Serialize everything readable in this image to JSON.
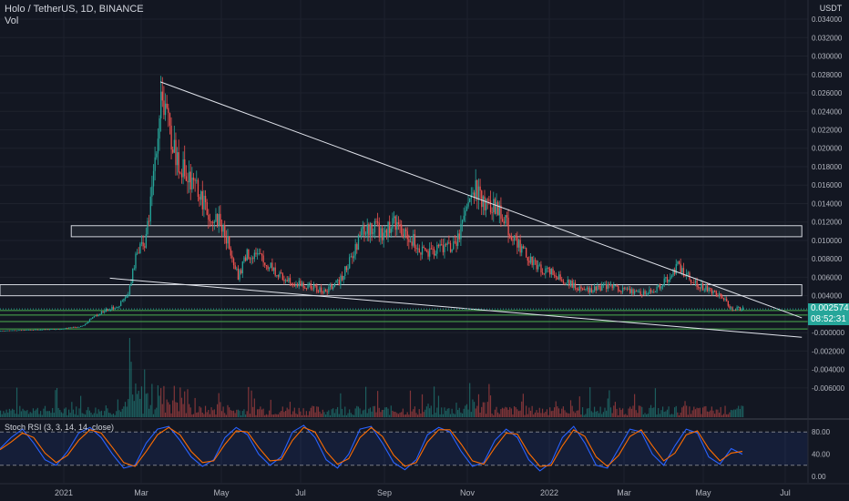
{
  "header": {
    "symbol_line": "Holo / TetherUS, 1D, BINANCE",
    "vol_label": "Vol"
  },
  "price_scale": {
    "currency": "USDT",
    "last_price": "0.002574",
    "countdown": "08:52:31"
  },
  "colors": {
    "background": "#131722",
    "grid": "#1e222d",
    "up": "#26a69a",
    "down": "#ef5350",
    "trendline": "#e0e3eb",
    "zone_fill": "#2a2e39",
    "support_lines": "#4caf50",
    "rsi_k": "#2962ff",
    "rsi_d": "#ff6d00"
  },
  "chart_data": [
    {
      "type": "candlestick",
      "title": "Holo / TetherUS, 1D, BINANCE",
      "x_ticks": [
        "2021",
        "Mar",
        "May",
        "Jul",
        "Sep",
        "Nov",
        "2022",
        "Mar",
        "May",
        "Jul"
      ],
      "y_ticks": [
        "0.034000",
        "0.032000",
        "0.030000",
        "0.028000",
        "0.026000",
        "0.024000",
        "0.022000",
        "0.020000",
        "0.018000",
        "0.016000",
        "0.014000",
        "0.012000",
        "0.010000",
        "0.008000",
        "0.006000",
        "0.004000",
        "-0.000000",
        "-0.002000",
        "-0.004000",
        "-0.006000"
      ],
      "ylim": [
        -0.0072,
        0.0345
      ],
      "price_path": [
        {
          "d": 0,
          "p": 0.0002
        },
        {
          "d": 40,
          "p": 0.0004
        },
        {
          "d": 55,
          "p": 0.0007
        },
        {
          "d": 62,
          "p": 0.0016
        },
        {
          "d": 70,
          "p": 0.0024
        },
        {
          "d": 80,
          "p": 0.003
        },
        {
          "d": 86,
          "p": 0.004
        },
        {
          "d": 92,
          "p": 0.009
        },
        {
          "d": 98,
          "p": 0.01
        },
        {
          "d": 104,
          "p": 0.018
        },
        {
          "d": 108,
          "p": 0.027
        },
        {
          "d": 112,
          "p": 0.023
        },
        {
          "d": 118,
          "p": 0.019
        },
        {
          "d": 126,
          "p": 0.017
        },
        {
          "d": 134,
          "p": 0.015
        },
        {
          "d": 140,
          "p": 0.013
        },
        {
          "d": 148,
          "p": 0.012
        },
        {
          "d": 154,
          "p": 0.0095
        },
        {
          "d": 160,
          "p": 0.006
        },
        {
          "d": 166,
          "p": 0.0085
        },
        {
          "d": 176,
          "p": 0.008
        },
        {
          "d": 186,
          "p": 0.0065
        },
        {
          "d": 196,
          "p": 0.0055
        },
        {
          "d": 208,
          "p": 0.005
        },
        {
          "d": 218,
          "p": 0.0045
        },
        {
          "d": 228,
          "p": 0.0055
        },
        {
          "d": 236,
          "p": 0.008
        },
        {
          "d": 244,
          "p": 0.011
        },
        {
          "d": 252,
          "p": 0.0115
        },
        {
          "d": 258,
          "p": 0.0105
        },
        {
          "d": 264,
          "p": 0.012
        },
        {
          "d": 270,
          "p": 0.011
        },
        {
          "d": 278,
          "p": 0.01
        },
        {
          "d": 286,
          "p": 0.0085
        },
        {
          "d": 296,
          "p": 0.009
        },
        {
          "d": 306,
          "p": 0.0095
        },
        {
          "d": 314,
          "p": 0.013
        },
        {
          "d": 320,
          "p": 0.0155
        },
        {
          "d": 326,
          "p": 0.014
        },
        {
          "d": 334,
          "p": 0.0135
        },
        {
          "d": 340,
          "p": 0.012
        },
        {
          "d": 346,
          "p": 0.01
        },
        {
          "d": 354,
          "p": 0.0085
        },
        {
          "d": 362,
          "p": 0.007
        },
        {
          "d": 372,
          "p": 0.0065
        },
        {
          "d": 382,
          "p": 0.0055
        },
        {
          "d": 392,
          "p": 0.0045
        },
        {
          "d": 402,
          "p": 0.0048
        },
        {
          "d": 412,
          "p": 0.005
        },
        {
          "d": 422,
          "p": 0.0045
        },
        {
          "d": 432,
          "p": 0.0042
        },
        {
          "d": 442,
          "p": 0.0048
        },
        {
          "d": 450,
          "p": 0.006
        },
        {
          "d": 456,
          "p": 0.0072
        },
        {
          "d": 462,
          "p": 0.0062
        },
        {
          "d": 470,
          "p": 0.0052
        },
        {
          "d": 478,
          "p": 0.0045
        },
        {
          "d": 486,
          "p": 0.004
        },
        {
          "d": 492,
          "p": 0.0026
        },
        {
          "d": 500,
          "p": 0.0026
        }
      ],
      "current_price": 0.002574,
      "trendlines": [
        {
          "from": {
            "d": 108,
            "p": 0.0272
          },
          "to": {
            "d": 540,
            "p": 0.0016
          }
        },
        {
          "from": {
            "d": 74,
            "p": 0.0059
          },
          "to": {
            "d": 540,
            "p": -0.0005
          }
        }
      ],
      "zones": [
        {
          "d0": 48,
          "d1": 540,
          "p0": 0.0104,
          "p1": 0.0116
        },
        {
          "d0": 0,
          "d1": 540,
          "p0": 0.004,
          "p1": 0.0052
        }
      ],
      "support_levels": [
        0.0024,
        0.0019,
        0.0012,
        0.0004
      ]
    },
    {
      "type": "line",
      "title": "Stoch RSI (3, 3, 14, 14, close)",
      "y_ticks": [
        "80.00",
        "40.00",
        "0.00"
      ],
      "ylim": [
        0,
        100
      ],
      "bands": [
        20,
        80
      ],
      "series": [
        {
          "name": "K",
          "values": [
            50,
            70,
            85,
            60,
            30,
            20,
            45,
            78,
            88,
            70,
            40,
            15,
            20,
            60,
            85,
            90,
            65,
            35,
            18,
            30,
            70,
            88,
            75,
            40,
            20,
            35,
            80,
            92,
            70,
            30,
            15,
            40,
            85,
            90,
            60,
            25,
            12,
            30,
            75,
            88,
            80,
            45,
            18,
            25,
            65,
            85,
            70,
            30,
            10,
            25,
            70,
            90,
            60,
            20,
            15,
            50,
            85,
            80,
            40,
            20,
            55,
            85,
            78,
            35,
            22,
            50,
            40
          ]
        },
        {
          "name": "D",
          "values": [
            48,
            62,
            78,
            70,
            42,
            25,
            38,
            65,
            84,
            78,
            52,
            25,
            18,
            45,
            75,
            88,
            75,
            45,
            25,
            28,
            58,
            82,
            80,
            52,
            28,
            30,
            65,
            88,
            80,
            45,
            22,
            32,
            70,
            88,
            72,
            38,
            18,
            25,
            62,
            84,
            84,
            58,
            28,
            22,
            52,
            78,
            76,
            42,
            18,
            20,
            55,
            84,
            72,
            35,
            18,
            38,
            72,
            84,
            55,
            28,
            42,
            75,
            82,
            50,
            28,
            42,
            45
          ]
        }
      ]
    }
  ]
}
